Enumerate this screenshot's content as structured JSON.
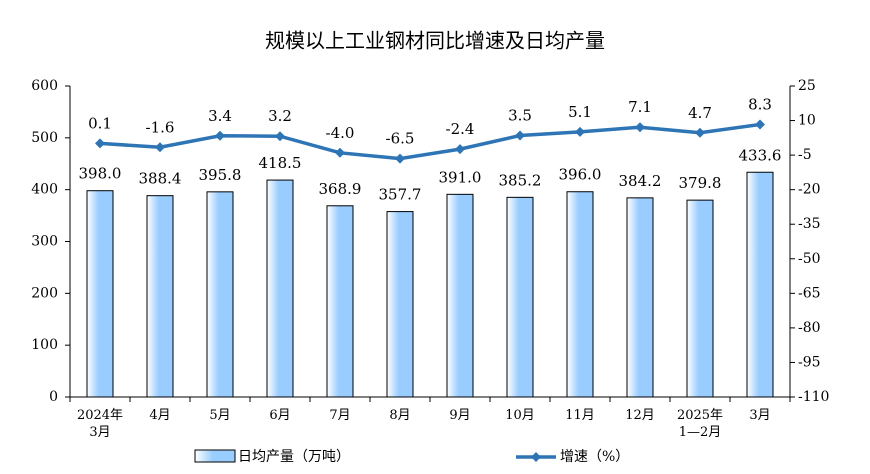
{
  "chart_data": {
    "type": "bar+line",
    "title": "规模以上工业钢材同比增速及日均产量",
    "categories": [
      "2024年\n3月",
      "4月",
      "5月",
      "6月",
      "7月",
      "8月",
      "9月",
      "10月",
      "11月",
      "12月",
      "2025年\n1—2月",
      "3月"
    ],
    "series": [
      {
        "name": "日均产量（万吨）",
        "type": "bar",
        "color": "#99ccff",
        "values": [
          398.0,
          388.4,
          395.8,
          418.5,
          368.9,
          357.7,
          391.0,
          385.2,
          396.0,
          384.2,
          379.8,
          433.6
        ],
        "value_labels": [
          "398.0",
          "388.4",
          "395.8",
          "418.5",
          "368.9",
          "357.7",
          "391.0",
          "385.2",
          "396.0",
          "384.2",
          "379.8",
          "433.6"
        ]
      },
      {
        "name": "增速（%）",
        "type": "line",
        "axis": "y2",
        "color": "#2e75b6",
        "values": [
          0.1,
          -1.6,
          3.4,
          3.2,
          -4.0,
          -6.5,
          -2.4,
          3.5,
          5.1,
          7.1,
          4.7,
          8.3
        ],
        "value_labels": [
          "0.1",
          "-1.6",
          "3.4",
          "3.2",
          "-4.0",
          "-6.5",
          "-2.4",
          "3.5",
          "5.1",
          "7.1",
          "4.7",
          "8.3"
        ]
      }
    ],
    "ylim": [
      0,
      600
    ],
    "yticks": [
      0,
      100,
      200,
      300,
      400,
      500,
      600
    ],
    "y2lim": [
      -110,
      25
    ],
    "y2ticks": [
      -110,
      -95,
      -80,
      -65,
      -50,
      -35,
      -20,
      -5,
      10,
      25
    ]
  }
}
